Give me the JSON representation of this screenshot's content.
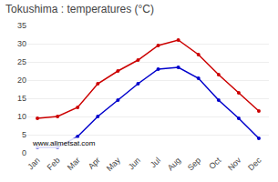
{
  "chart_data": {
    "type": "line",
    "title": "Tokushima : temperatures (°C)",
    "categories": [
      "Jan",
      "Feb",
      "Mar",
      "Apr",
      "May",
      "Jun",
      "Jul",
      "Aug",
      "Sep",
      "Oct",
      "Nov",
      "Dec"
    ],
    "series": [
      {
        "color": "#cc0000",
        "values": [
          9.5,
          10.0,
          12.5,
          19.0,
          22.5,
          25.5,
          29.5,
          31.0,
          27.0,
          21.5,
          16.5,
          11.5
        ]
      },
      {
        "color": "#0000cc",
        "values": [
          1.5,
          1.5,
          4.5,
          10.0,
          14.5,
          19.0,
          23.0,
          23.5,
          20.5,
          14.5,
          9.5,
          4.0
        ]
      }
    ],
    "ylim": [
      0,
      35
    ],
    "yticks": [
      0,
      5,
      10,
      15,
      20,
      25,
      30,
      35
    ],
    "grid": true,
    "marker": "circle",
    "annotations": [
      "www.allmetsat.com"
    ]
  }
}
